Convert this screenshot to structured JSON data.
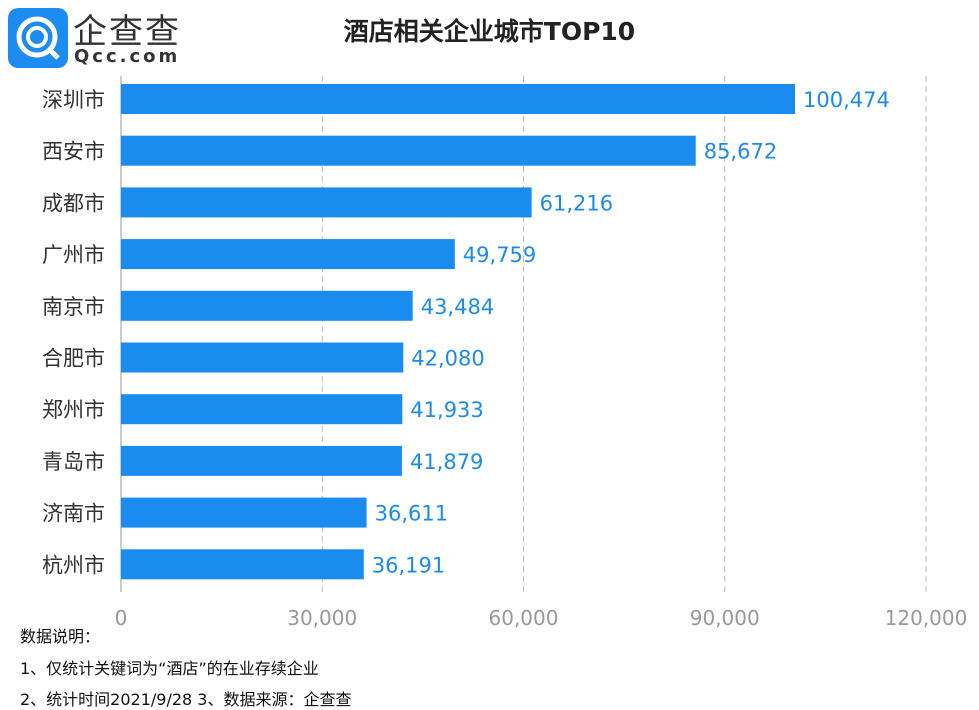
{
  "logo": {
    "cn": "企查查",
    "en": "Qcc.com"
  },
  "notes": [
    "数据说明：",
    "1、仅统计关键词为“酒店”的在业存续企业",
    "2、统计时间2021/9/28   3、数据来源：企查查"
  ],
  "colors": {
    "bar": "#1a8cf0",
    "label": "#1a8cf0",
    "axis": "#999999"
  },
  "chart_data": {
    "type": "bar",
    "orientation": "horizontal",
    "title": "酒店相关企业城市TOP10",
    "categories": [
      "深圳市",
      "西安市",
      "成都市",
      "广州市",
      "南京市",
      "合肥市",
      "郑州市",
      "青岛市",
      "济南市",
      "杭州市"
    ],
    "values": [
      100474,
      85672,
      61216,
      49759,
      43484,
      42080,
      41933,
      41879,
      36611,
      36191
    ],
    "value_labels": [
      "100,474",
      "85,672",
      "61,216",
      "49,759",
      "43,484",
      "42,080",
      "41,933",
      "41,879",
      "36,611",
      "36,191"
    ],
    "xlim": [
      0,
      120000
    ],
    "xticks": [
      0,
      30000,
      60000,
      90000,
      120000
    ],
    "xtick_labels": [
      "0",
      "30,000",
      "60,000",
      "90,000",
      "120,000"
    ],
    "grid": true,
    "xlabel": "",
    "ylabel": ""
  }
}
